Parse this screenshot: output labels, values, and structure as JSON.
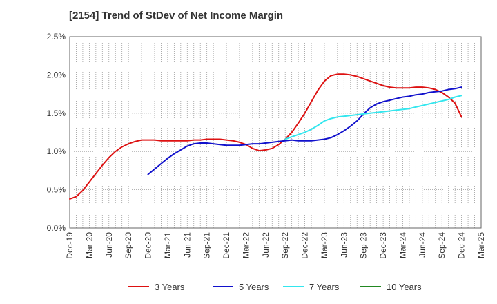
{
  "chart_data": {
    "type": "line",
    "title": "[2154]  Trend of StDev of Net Income Margin",
    "xlabel": "",
    "ylabel": "",
    "ylim": [
      0,
      2.5
    ],
    "y_ticks": [
      "0.0%",
      "0.5%",
      "1.0%",
      "1.5%",
      "2.0%",
      "2.5%"
    ],
    "x_ticks": [
      "Dec-19",
      "Mar-20",
      "Jun-20",
      "Sep-20",
      "Dec-20",
      "Mar-21",
      "Jun-21",
      "Sep-21",
      "Dec-21",
      "Mar-22",
      "Jun-22",
      "Sep-22",
      "Dec-22",
      "Mar-23",
      "Jun-23",
      "Sep-23",
      "Dec-23",
      "Mar-24",
      "Jun-24",
      "Sep-24",
      "Dec-24",
      "Mar-25"
    ],
    "grid": true,
    "legend_position": "bottom",
    "series": [
      {
        "name": "3 Years",
        "color": "#dd1111",
        "x": [
          "Dec-19",
          "Jan-20",
          "Feb-20",
          "Mar-20",
          "Apr-20",
          "May-20",
          "Jun-20",
          "Jul-20",
          "Aug-20",
          "Sep-20",
          "Oct-20",
          "Nov-20",
          "Dec-20",
          "Jan-21",
          "Feb-21",
          "Mar-21",
          "Apr-21",
          "May-21",
          "Jun-21",
          "Jul-21",
          "Aug-21",
          "Sep-21",
          "Oct-21",
          "Nov-21",
          "Dec-21",
          "Jan-22",
          "Feb-22",
          "Mar-22",
          "Apr-22",
          "May-22",
          "Jun-22",
          "Jul-22",
          "Aug-22",
          "Sep-22",
          "Oct-22",
          "Nov-22",
          "Dec-22",
          "Jan-23",
          "Feb-23",
          "Mar-23",
          "Apr-23",
          "May-23",
          "Jun-23",
          "Jul-23",
          "Aug-23",
          "Sep-23",
          "Oct-23",
          "Nov-23",
          "Dec-23",
          "Jan-24",
          "Feb-24",
          "Mar-24",
          "Apr-24",
          "May-24",
          "Jun-24",
          "Jul-24",
          "Aug-24",
          "Sep-24",
          "Oct-24",
          "Nov-24",
          "Dec-24"
        ],
        "values": [
          0.38,
          0.41,
          0.49,
          0.6,
          0.71,
          0.82,
          0.92,
          1.0,
          1.06,
          1.1,
          1.13,
          1.15,
          1.15,
          1.15,
          1.14,
          1.14,
          1.14,
          1.14,
          1.14,
          1.15,
          1.15,
          1.16,
          1.16,
          1.16,
          1.15,
          1.14,
          1.12,
          1.09,
          1.04,
          1.01,
          1.02,
          1.04,
          1.09,
          1.16,
          1.25,
          1.37,
          1.5,
          1.65,
          1.8,
          1.92,
          1.99,
          2.01,
          2.01,
          2.0,
          1.98,
          1.95,
          1.92,
          1.89,
          1.86,
          1.84,
          1.83,
          1.83,
          1.83,
          1.84,
          1.84,
          1.83,
          1.81,
          1.77,
          1.71,
          1.63,
          1.45
        ]
      },
      {
        "name": "5 Years",
        "color": "#1111cc",
        "x": [
          "Dec-20",
          "Jan-21",
          "Feb-21",
          "Mar-21",
          "Apr-21",
          "May-21",
          "Jun-21",
          "Jul-21",
          "Aug-21",
          "Sep-21",
          "Oct-21",
          "Nov-21",
          "Dec-21",
          "Jan-22",
          "Feb-22",
          "Mar-22",
          "Apr-22",
          "May-22",
          "Jun-22",
          "Jul-22",
          "Aug-22",
          "Sep-22",
          "Oct-22",
          "Nov-22",
          "Dec-22",
          "Jan-23",
          "Feb-23",
          "Mar-23",
          "Apr-23",
          "May-23",
          "Jun-23",
          "Jul-23",
          "Aug-23",
          "Sep-23",
          "Oct-23",
          "Nov-23",
          "Dec-23",
          "Jan-24",
          "Feb-24",
          "Mar-24",
          "Apr-24",
          "May-24",
          "Jun-24",
          "Jul-24",
          "Aug-24",
          "Sep-24",
          "Oct-24",
          "Nov-24",
          "Dec-24"
        ],
        "values": [
          0.7,
          0.77,
          0.84,
          0.91,
          0.97,
          1.02,
          1.07,
          1.1,
          1.11,
          1.11,
          1.1,
          1.09,
          1.08,
          1.08,
          1.08,
          1.09,
          1.1,
          1.1,
          1.11,
          1.12,
          1.13,
          1.14,
          1.15,
          1.14,
          1.14,
          1.14,
          1.15,
          1.16,
          1.18,
          1.22,
          1.27,
          1.33,
          1.4,
          1.49,
          1.57,
          1.62,
          1.65,
          1.67,
          1.69,
          1.71,
          1.72,
          1.74,
          1.75,
          1.77,
          1.78,
          1.79,
          1.81,
          1.82,
          1.84
        ]
      },
      {
        "name": "7 Years",
        "color": "#33e6ee",
        "x": [
          "Sep-22",
          "Oct-22",
          "Nov-22",
          "Dec-22",
          "Jan-23",
          "Feb-23",
          "Mar-23",
          "Apr-23",
          "May-23",
          "Jun-23",
          "Jul-23",
          "Aug-23",
          "Sep-23",
          "Oct-23",
          "Nov-23",
          "Dec-23",
          "Jan-24",
          "Feb-24",
          "Mar-24",
          "Apr-24",
          "May-24",
          "Jun-24",
          "Jul-24",
          "Aug-24",
          "Sep-24",
          "Oct-24",
          "Nov-24",
          "Dec-24"
        ],
        "values": [
          1.16,
          1.19,
          1.22,
          1.25,
          1.29,
          1.34,
          1.4,
          1.43,
          1.45,
          1.46,
          1.47,
          1.48,
          1.49,
          1.5,
          1.51,
          1.52,
          1.53,
          1.54,
          1.55,
          1.56,
          1.58,
          1.6,
          1.62,
          1.64,
          1.66,
          1.68,
          1.71,
          1.73
        ]
      },
      {
        "name": "10 Years",
        "color": "#228822",
        "x": [],
        "values": []
      }
    ]
  }
}
